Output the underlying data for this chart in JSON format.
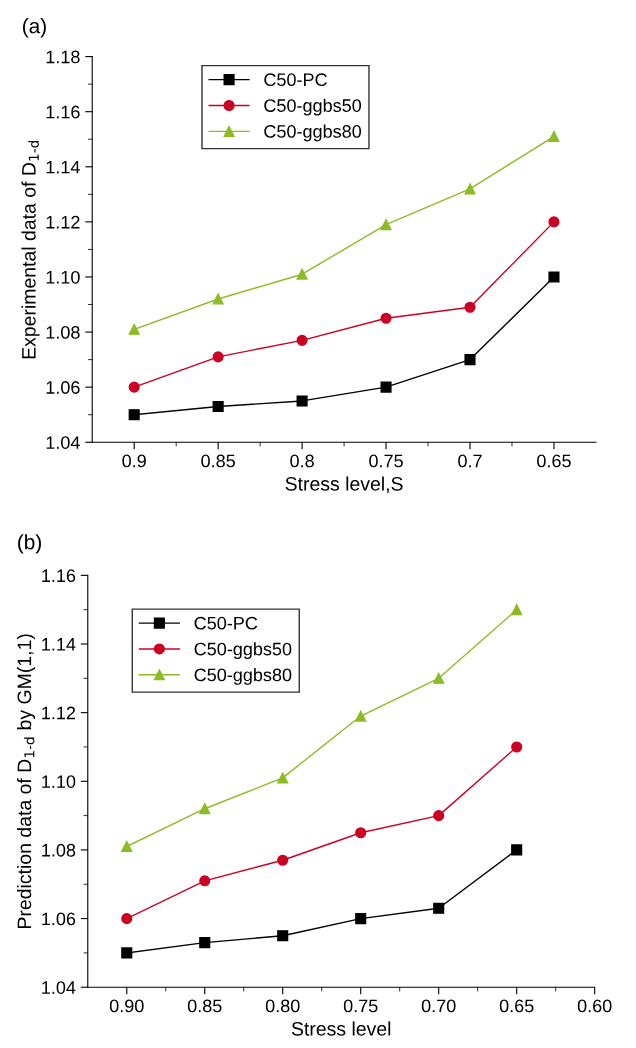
{
  "chart_data": [
    {
      "type": "line",
      "annotations": [
        "(a)"
      ],
      "xlabel": "Stress level,S",
      "ylabel": "Experimental data of D$_{1-d}$",
      "x": [
        0.9,
        0.85,
        0.8,
        0.75,
        0.7,
        0.65
      ],
      "xlim": [
        0.925,
        0.625
      ],
      "xticks": [
        0.9,
        0.85,
        0.8,
        0.75,
        0.7,
        0.65
      ],
      "ylim": [
        1.04,
        1.18
      ],
      "yticks": [
        {
          "value": 1.04,
          "label": "1.04"
        },
        {
          "value": 1.06,
          "label": "1.06"
        },
        {
          "value": 1.08,
          "label": "1.08"
        },
        {
          "value": 1.1,
          "label": "1.10"
        },
        {
          "value": 1.12,
          "label": "1.12"
        },
        {
          "value": 1.14,
          "label": "1.14"
        },
        {
          "value": 1.16,
          "label": "1.16"
        },
        {
          "value": 1.18,
          "label": "1.18"
        }
      ],
      "grid": false,
      "legend": "top left",
      "series": [
        {
          "name": "C50-PC",
          "color": "#000000",
          "marker": "square",
          "values": [
            1.05,
            1.053,
            1.055,
            1.06,
            1.07,
            1.1
          ]
        },
        {
          "name": "C50-ggbs50",
          "color": "#cc0022",
          "marker": "circle",
          "values": [
            1.06,
            1.071,
            1.077,
            1.085,
            1.089,
            1.12
          ]
        },
        {
          "name": "C50-ggbs80",
          "color": "#8dbb25",
          "marker": "triangle",
          "values": [
            1.081,
            1.092,
            1.101,
            1.119,
            1.132,
            1.151
          ]
        }
      ]
    },
    {
      "type": "line",
      "annotations": [
        "(b)"
      ],
      "xlabel": "Stress level",
      "ylabel": "Prediction data of D$_{1-d}$ by GM(1,1)",
      "x": [
        0.9,
        0.85,
        0.8,
        0.75,
        0.7,
        0.65
      ],
      "xlim": [
        0.925,
        0.6
      ],
      "xticks": [
        {
          "value": 0.9,
          "label": "0.90"
        },
        0.85,
        {
          "value": 0.8,
          "label": "0.80"
        },
        0.75,
        {
          "value": 0.7,
          "label": "0.70"
        },
        0.65,
        {
          "value": 0.6,
          "label": "0.60"
        }
      ],
      "ylim": [
        1.04,
        1.16
      ],
      "yticks": [
        {
          "value": 1.04,
          "label": "1.04"
        },
        {
          "value": 1.06,
          "label": "1.06"
        },
        {
          "value": 1.08,
          "label": "1.08"
        },
        {
          "value": 1.1,
          "label": "1.10"
        },
        {
          "value": 1.12,
          "label": "1.12"
        },
        {
          "value": 1.14,
          "label": "1.14"
        },
        {
          "value": 1.16,
          "label": "1.16"
        }
      ],
      "grid": false,
      "legend": "top left",
      "series": [
        {
          "name": "C50-PC",
          "color": "#000000",
          "marker": "square",
          "values": [
            1.05,
            1.053,
            1.055,
            1.06,
            1.063,
            1.08
          ]
        },
        {
          "name": "C50-ggbs50",
          "color": "#cc0022",
          "marker": "circle",
          "values": [
            1.06,
            1.071,
            1.077,
            1.085,
            1.09,
            1.11
          ]
        },
        {
          "name": "C50-ggbs80",
          "color": "#8dbb25",
          "marker": "triangle",
          "values": [
            1.081,
            1.092,
            1.101,
            1.119,
            1.13,
            1.15
          ]
        }
      ]
    }
  ]
}
